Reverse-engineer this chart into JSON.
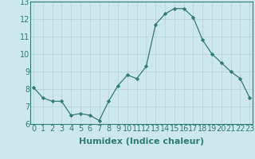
{
  "x": [
    0,
    1,
    2,
    3,
    4,
    5,
    6,
    7,
    8,
    9,
    10,
    11,
    12,
    13,
    14,
    15,
    16,
    17,
    18,
    19,
    20,
    21,
    22,
    23
  ],
  "y": [
    8.1,
    7.5,
    7.3,
    7.3,
    6.5,
    6.6,
    6.5,
    6.2,
    7.3,
    8.2,
    8.8,
    8.6,
    9.3,
    11.7,
    12.3,
    12.6,
    12.6,
    12.1,
    10.8,
    10.0,
    9.5,
    9.0,
    8.6,
    7.5
  ],
  "xlabel": "Humidex (Indice chaleur)",
  "ylim": [
    6,
    13
  ],
  "xlim": [
    0,
    23
  ],
  "yticks": [
    6,
    7,
    8,
    9,
    10,
    11,
    12,
    13
  ],
  "xticks": [
    0,
    1,
    2,
    3,
    4,
    5,
    6,
    7,
    8,
    9,
    10,
    11,
    12,
    13,
    14,
    15,
    16,
    17,
    18,
    19,
    20,
    21,
    22,
    23
  ],
  "line_color": "#2e7d6e",
  "marker": "D",
  "marker_size": 2.2,
  "bg_color": "#cce8ec",
  "grid_color": "#b8d4d8",
  "axes_color": "#2e7d6e",
  "xlabel_fontsize": 8,
  "tick_fontsize": 7
}
